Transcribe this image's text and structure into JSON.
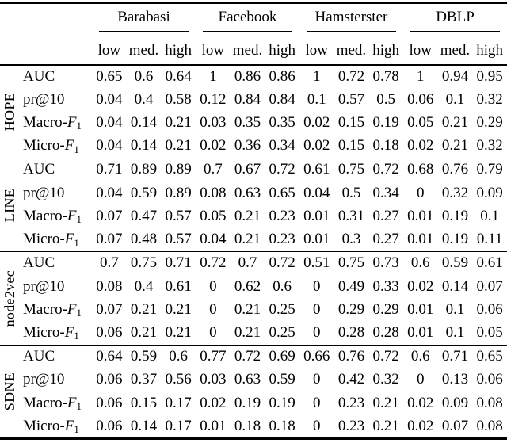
{
  "colors": {
    "background": "#ffffff",
    "text": "#000000",
    "rule": "#000000"
  },
  "table": {
    "col_groups": [
      {
        "label": "Barabasi",
        "sub": [
          "low",
          "med.",
          "high"
        ]
      },
      {
        "label": "Facebook",
        "sub": [
          "low",
          "med.",
          "high"
        ]
      },
      {
        "label": "Hamsterster",
        "sub": [
          "low",
          "med.",
          "high"
        ]
      },
      {
        "label": "DBLP",
        "sub": [
          "low",
          "med.",
          "high"
        ]
      }
    ],
    "row_groups": [
      {
        "label": "HOPE",
        "rows": [
          {
            "metric": "AUC",
            "values": [
              "0.65",
              "0.6",
              "0.64",
              "1",
              "0.86",
              "0.86",
              "1",
              "0.72",
              "0.78",
              "1",
              "0.94",
              "0.95"
            ]
          },
          {
            "metric": "pr@10",
            "values": [
              "0.04",
              "0.4",
              "0.58",
              "0.12",
              "0.84",
              "0.84",
              "0.1",
              "0.57",
              "0.5",
              "0.06",
              "0.1",
              "0.32"
            ]
          },
          {
            "metric": "Macro-F1",
            "values": [
              "0.04",
              "0.14",
              "0.21",
              "0.03",
              "0.35",
              "0.35",
              "0.02",
              "0.15",
              "0.19",
              "0.05",
              "0.21",
              "0.29"
            ]
          },
          {
            "metric": "Micro-F1",
            "values": [
              "0.04",
              "0.14",
              "0.21",
              "0.02",
              "0.36",
              "0.34",
              "0.02",
              "0.15",
              "0.18",
              "0.02",
              "0.21",
              "0.32"
            ]
          }
        ]
      },
      {
        "label": "LINE",
        "rows": [
          {
            "metric": "AUC",
            "values": [
              "0.71",
              "0.89",
              "0.89",
              "0.7",
              "0.67",
              "0.72",
              "0.61",
              "0.75",
              "0.72",
              "0.68",
              "0.76",
              "0.79"
            ]
          },
          {
            "metric": "pr@10",
            "values": [
              "0.04",
              "0.59",
              "0.89",
              "0.08",
              "0.63",
              "0.65",
              "0.04",
              "0.5",
              "0.34",
              "0",
              "0.32",
              "0.09"
            ]
          },
          {
            "metric": "Macro-F1",
            "values": [
              "0.07",
              "0.47",
              "0.57",
              "0.05",
              "0.21",
              "0.23",
              "0.01",
              "0.31",
              "0.27",
              "0.01",
              "0.19",
              "0.1"
            ]
          },
          {
            "metric": "Micro-F1",
            "values": [
              "0.07",
              "0.48",
              "0.57",
              "0.04",
              "0.21",
              "0.23",
              "0.01",
              "0.3",
              "0.27",
              "0.01",
              "0.19",
              "0.11"
            ]
          }
        ]
      },
      {
        "label": "node2vec",
        "rows": [
          {
            "metric": "AUC",
            "values": [
              "0.7",
              "0.75",
              "0.71",
              "0.72",
              "0.7",
              "0.72",
              "0.51",
              "0.75",
              "0.73",
              "0.6",
              "0.59",
              "0.61"
            ]
          },
          {
            "metric": "pr@10",
            "values": [
              "0.08",
              "0.4",
              "0.61",
              "0",
              "0.62",
              "0.6",
              "0",
              "0.49",
              "0.33",
              "0.02",
              "0.14",
              "0.07"
            ]
          },
          {
            "metric": "Macro-F1",
            "values": [
              "0.07",
              "0.21",
              "0.21",
              "0",
              "0.21",
              "0.25",
              "0",
              "0.29",
              "0.29",
              "0.01",
              "0.1",
              "0.06"
            ]
          },
          {
            "metric": "Micro-F1",
            "values": [
              "0.06",
              "0.21",
              "0.21",
              "0",
              "0.21",
              "0.25",
              "0",
              "0.28",
              "0.28",
              "0.01",
              "0.1",
              "0.05"
            ]
          }
        ]
      },
      {
        "label": "SDNE",
        "rows": [
          {
            "metric": "AUC",
            "values": [
              "0.64",
              "0.59",
              "0.6",
              "0.77",
              "0.72",
              "0.69",
              "0.66",
              "0.76",
              "0.72",
              "0.6",
              "0.71",
              "0.65"
            ]
          },
          {
            "metric": "pr@10",
            "values": [
              "0.06",
              "0.37",
              "0.56",
              "0.03",
              "0.63",
              "0.59",
              "0",
              "0.42",
              "0.32",
              "0",
              "0.13",
              "0.06"
            ]
          },
          {
            "metric": "Macro-F1",
            "values": [
              "0.06",
              "0.15",
              "0.17",
              "0.02",
              "0.19",
              "0.19",
              "0",
              "0.23",
              "0.21",
              "0.02",
              "0.09",
              "0.08"
            ]
          },
          {
            "metric": "Micro-F1",
            "values": [
              "0.06",
              "0.14",
              "0.17",
              "0.01",
              "0.18",
              "0.18",
              "0",
              "0.23",
              "0.21",
              "0.02",
              "0.07",
              "0.08"
            ]
          }
        ]
      }
    ]
  }
}
